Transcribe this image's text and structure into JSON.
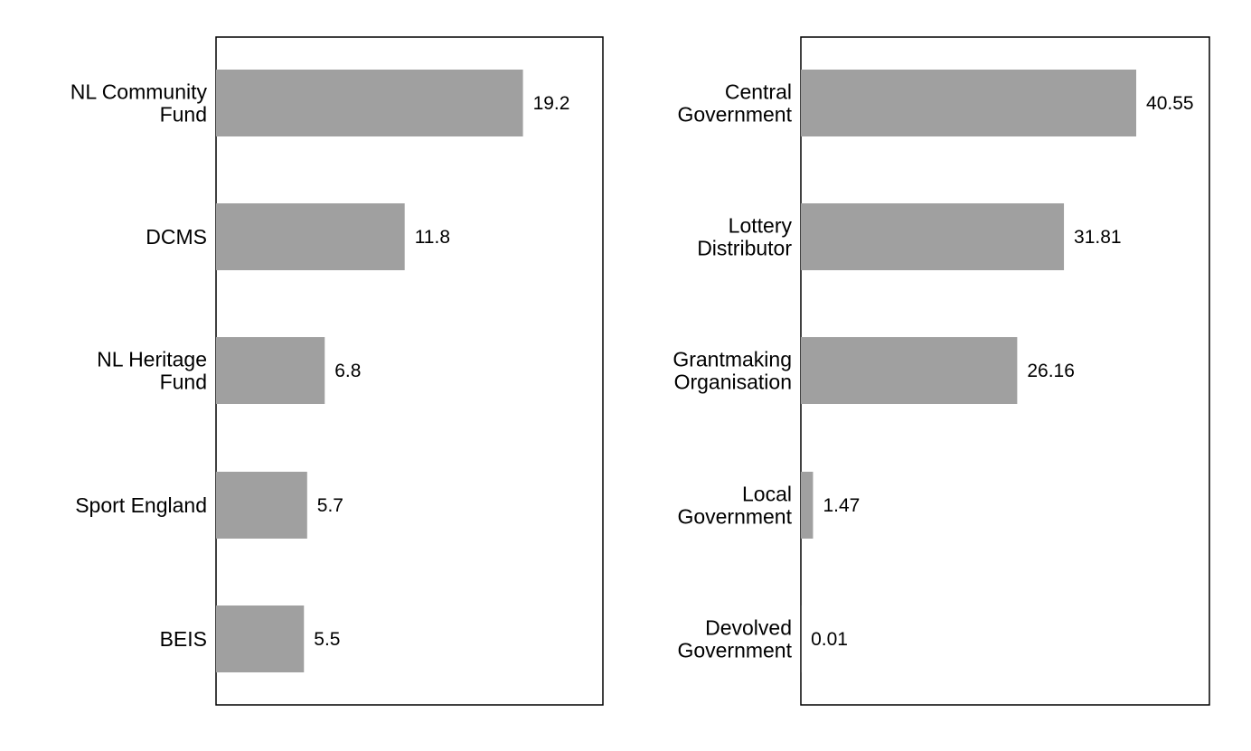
{
  "chart_data": [
    {
      "type": "bar",
      "orientation": "horizontal",
      "categories": [
        [
          "NL Community",
          "Fund"
        ],
        [
          "DCMS"
        ],
        [
          "NL Heritage",
          "Fund"
        ],
        [
          "Sport England"
        ],
        [
          "BEIS"
        ]
      ],
      "values": [
        19.2,
        11.8,
        6.8,
        5.7,
        5.5
      ],
      "value_labels": [
        "19.2",
        "11.8",
        "6.8",
        "5.7",
        "5.5"
      ],
      "bar_color": "#a0a0a0",
      "xlim": [
        0,
        24.2
      ],
      "grid": false,
      "title": "",
      "xlabel": "",
      "ylabel": ""
    },
    {
      "type": "bar",
      "orientation": "horizontal",
      "categories": [
        [
          "Central",
          "Government"
        ],
        [
          "Lottery",
          "Distributor"
        ],
        [
          "Grantmaking",
          "Organisation"
        ],
        [
          "Local",
          "Government"
        ],
        [
          "Devolved",
          "Government"
        ]
      ],
      "values": [
        40.55,
        31.81,
        26.16,
        1.47,
        0.01
      ],
      "value_labels": [
        "40.55",
        "31.81",
        "26.16",
        "1.47",
        "0.01"
      ],
      "bar_color": "#a0a0a0",
      "xlim": [
        0,
        49.4
      ],
      "grid": false,
      "title": "",
      "xlabel": "",
      "ylabel": ""
    }
  ]
}
